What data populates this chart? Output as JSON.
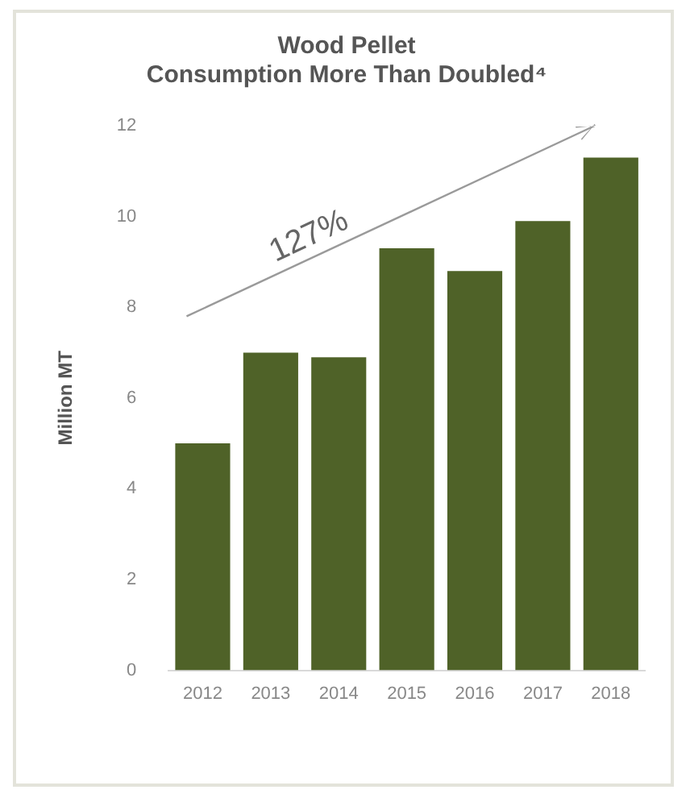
{
  "chart_data": {
    "type": "bar",
    "title": "Wood Pellet\nConsumption More Than Doubled⁴",
    "ylabel": "Million MT",
    "categories": [
      "2012",
      "2013",
      "2014",
      "2015",
      "2016",
      "2017",
      "2018"
    ],
    "values": [
      5.0,
      7.0,
      6.9,
      9.3,
      8.8,
      9.9,
      11.3
    ],
    "color": "#4f6228",
    "ylim": [
      0,
      12
    ],
    "yticks": [
      0,
      2,
      4,
      6,
      8,
      10,
      12
    ],
    "grid": false,
    "legend": false,
    "annotations": [
      "127%"
    ]
  }
}
